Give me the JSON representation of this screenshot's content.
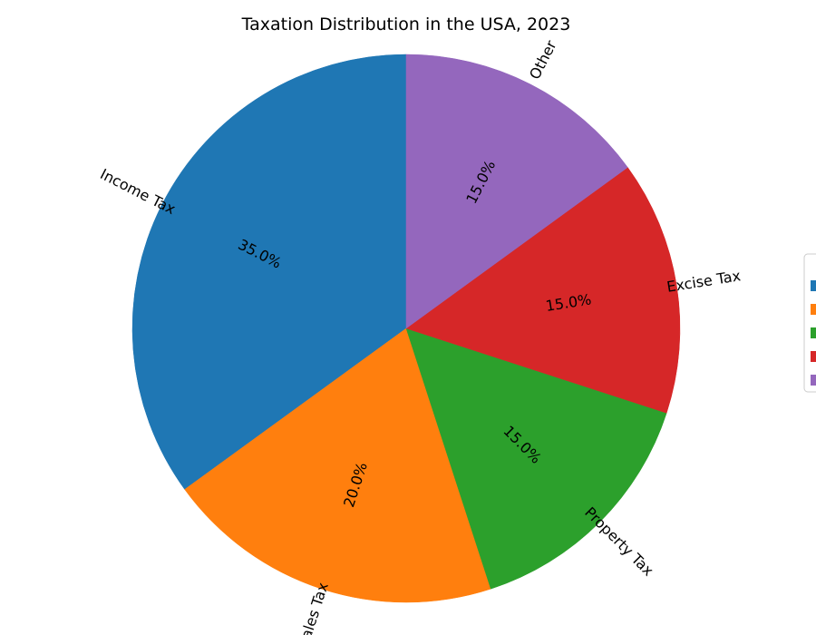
{
  "chart_data": {
    "type": "pie",
    "title": "Taxation Distribution in the USA, 2023",
    "slices": [
      {
        "label": "Income Tax",
        "value": 35,
        "pct_label": "35.0%",
        "color": "#1f77b4"
      },
      {
        "label": "Sales Tax",
        "value": 20,
        "pct_label": "20.0%",
        "color": "#ff7f0e"
      },
      {
        "label": "Property Tax",
        "value": 15,
        "pct_label": "15.0%",
        "color": "#2ca02c"
      },
      {
        "label": "Excise Tax",
        "value": 15,
        "pct_label": "15.0%",
        "color": "#d62728"
      },
      {
        "label": "Other",
        "value": 15,
        "pct_label": "15.0%",
        "color": "#9467bd"
      }
    ],
    "start_angle_deg": 90,
    "direction": "counterclockwise",
    "labels_rotated": true,
    "legend_placement": "right",
    "grid": false
  }
}
